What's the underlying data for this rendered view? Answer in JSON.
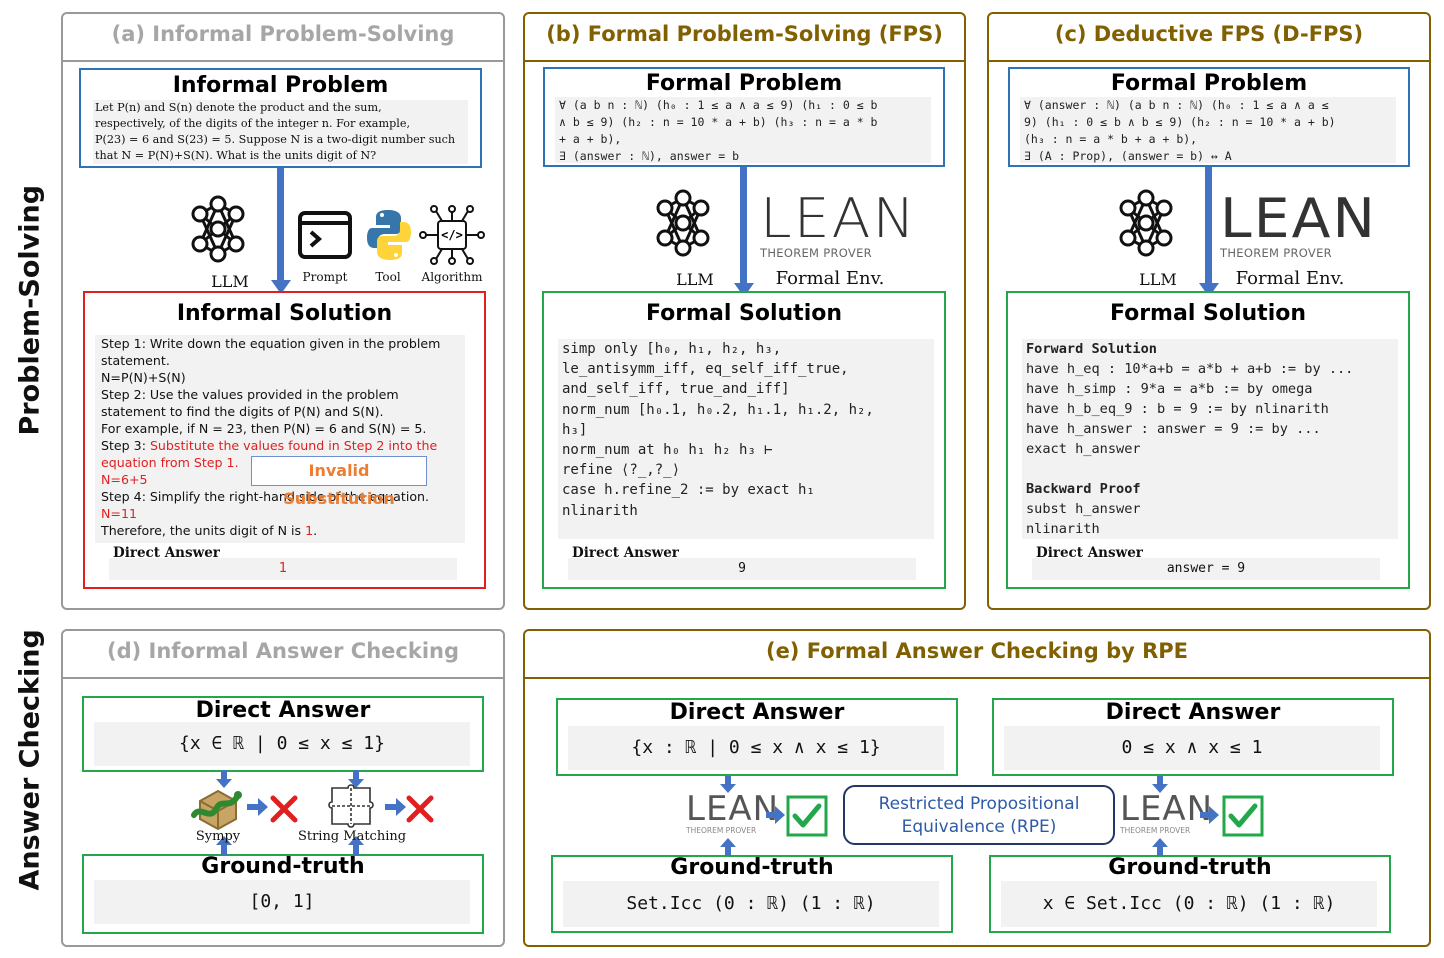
{
  "side_labels": {
    "problem_solving": "Problem-Solving",
    "answer_checking": "Answer Checking"
  },
  "panel_a": {
    "title": "(a) Informal Problem-Solving",
    "problem_title": "Informal Problem",
    "problem_lines": [
      "Let P(n) and S(n) denote the product and the sum,",
      "respectively, of the digits of the integer n. For example,",
      "P(23) = 6 and S(23) = 5. Suppose N is a two-digit number such",
      "that N = P(N)+S(N). What is the units digit of N?"
    ],
    "icon_labels": [
      "LLM",
      "Prompt",
      "Tool",
      "Algorithm"
    ],
    "solution_title": "Informal Solution",
    "solution_lines": [
      {
        "text": "Step 1: Write down the equation given in the problem",
        "red": false
      },
      {
        "text": "statement.",
        "red": false
      },
      {
        "text": "N=P(N)+S(N)",
        "red": false
      },
      {
        "text": "Step 2: Use the values provided in the problem",
        "red": false
      },
      {
        "text": "statement to find the digits of P(N) and S(N).",
        "red": false
      },
      {
        "text": "For example, if N = 23, then P(N) = 6 and S(N) = 5.",
        "red": false
      },
      {
        "text": "Step 3: ",
        "red": false,
        "tail": "Substitute the values found in Step 2 into the"
      },
      {
        "text": "equation from Step 1.",
        "red": true
      },
      {
        "text": "N=6+5",
        "red": true
      },
      {
        "text": "Step 4: Simplify the right-hand side of the equation.",
        "red": false
      },
      {
        "text": "N=11",
        "red": true
      },
      {
        "text": "Therefore, the units digit of N is ",
        "red": false,
        "tail": "1",
        "tail_suffix": "."
      }
    ],
    "error_tag": "Invalid Substitution",
    "direct_answer_label": "Direct Answer",
    "direct_answer_value": "1"
  },
  "panel_b": {
    "title": "(b) Formal Problem-Solving (FPS)",
    "problem_title": "Formal Problem",
    "problem_lines": [
      "∀ (a b n : ℕ) (h₀ : 1 ≤ a ∧ a ≤ 9) (h₁ : 0 ≤ b",
      "∧ b ≤ 9) (h₂ : n = 10 * a + b) (h₃ : n = a * b",
      "+ a + b),",
      "∃ (answer : ℕ), answer = b"
    ],
    "llm_label": "LLM",
    "env_label": "Formal Env.",
    "lean_text": "LEAN",
    "lean_sub": "THEOREM PROVER",
    "solution_title": "Formal Solution",
    "solution_lines": [
      "simp only [h₀, h₁, h₂, h₃,",
      "le_antisymm_iff, eq_self_iff_true,",
      "and_self_iff, true_and_iff]",
      "norm_num [h₀.1, h₀.2, h₁.1, h₁.2, h₂,",
      "h₃]",
      "norm_num at h₀ h₁ h₂ h₃ ⊢",
      "refine ⟨?_,?_⟩",
      "case h.refine_2 := by exact h₁",
      "nlinarith"
    ],
    "direct_answer_label": "Direct Answer",
    "direct_answer_value": "9"
  },
  "panel_c": {
    "title": "(c) Deductive FPS (D-FPS)",
    "problem_title": "Formal Problem",
    "problem_lines": [
      "∀ (answer : ℕ) (a b n : ℕ) (h₀ : 1 ≤ a ∧ a ≤",
      "9) (h₁ : 0 ≤ b ∧ b ≤ 9) (h₂ : n = 10 * a + b)",
      "(h₃ : n = a * b + a + b),",
      "∃ (A : Prop), (answer = b) ↔ A"
    ],
    "llm_label": "LLM",
    "env_label": "Formal Env.",
    "solution_title": "Formal Solution",
    "forward_title": "Forward Solution",
    "forward_lines": [
      "have h_eq : 10*a+b = a*b + a+b := by ...",
      "have h_simp : 9*a = a*b := by omega",
      "have h_b_eq_9 : b = 9 := by nlinarith",
      "have h_answer : answer = 9 := by ...",
      "exact h_answer"
    ],
    "backward_title": "Backward Proof",
    "backward_lines": [
      "subst h_answer",
      "nlinarith"
    ],
    "direct_answer_label": "Direct Answer",
    "direct_answer_value": "answer = 9"
  },
  "panel_d": {
    "title": "(d) Informal Answer Checking",
    "direct_answer_title": "Direct Answer",
    "direct_answer_value": "{x ∈ ℝ | 0 ≤ x ≤ 1}",
    "checker_labels": [
      "Sympy",
      "String Matching"
    ],
    "ground_truth_title": "Ground-truth",
    "ground_truth_value": "[0, 1]"
  },
  "panel_e": {
    "title": "(e) Formal Answer Checking by RPE",
    "left": {
      "direct_answer_title": "Direct Answer",
      "direct_answer_value": "{x : ℝ | 0 ≤ x ∧ x ≤ 1}",
      "ground_truth_title": "Ground-truth",
      "ground_truth_value": "Set.Icc (0 : ℝ) (1 : ℝ)"
    },
    "right": {
      "direct_answer_title": "Direct Answer",
      "direct_answer_value": "0 ≤ x ∧ x ≤ 1",
      "ground_truth_title": "Ground-truth",
      "ground_truth_value": "x ∈ Set.Icc (0 : ℝ) (1 : ℝ)"
    },
    "rpe_lines": [
      "Restricted Propositional",
      "Equivalence (RPE)"
    ]
  },
  "colors": {
    "blue": "#2e74b5",
    "green": "#22a84a",
    "red": "#e02020",
    "gold": "#806000",
    "grey": "#a6a6a6",
    "orange": "#ed7d31"
  }
}
